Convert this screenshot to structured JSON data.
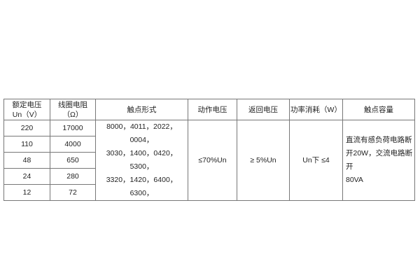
{
  "headers": [
    "额定电压\nUn（V）",
    "线圈电阻\n（Ω）",
    "触点形式",
    "动作电压",
    "返回电压",
    "功率消耗（W）",
    "触点容量"
  ],
  "header_lines": [
    [
      "额定电压",
      "Un（V）"
    ],
    [
      "线圈电阻",
      "（Ω）"
    ]
  ],
  "rows": [
    {
      "voltage": "220",
      "resistance": "17000"
    },
    {
      "voltage": "110",
      "resistance": "4000"
    },
    {
      "voltage": "48",
      "resistance": "650"
    },
    {
      "voltage": "24",
      "resistance": "280"
    },
    {
      "voltage": "12",
      "resistance": "72"
    }
  ],
  "contact_forms": [
    "8000，4011，2022，0004，",
    "3030，1400，0420，5300，",
    "3320，1420，6400，6300，"
  ],
  "operate_voltage": "≤70%Un",
  "release_voltage": "≥ 5%Un",
  "power_consumption": "Un下 ≤4",
  "contact_capacity": [
    "直流有感负荷电路断",
    "开20W，交流电路断开",
    "80VA"
  ]
}
